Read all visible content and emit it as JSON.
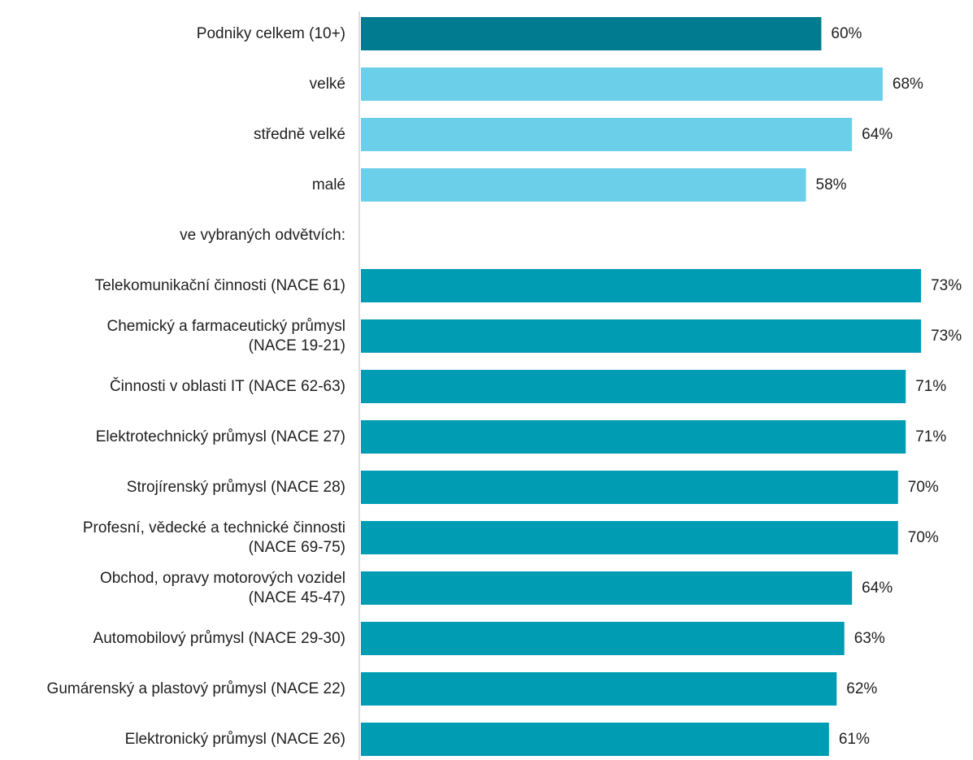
{
  "chart_data": {
    "type": "bar",
    "orientation": "horizontal",
    "title": "",
    "xlabel": "",
    "ylabel": "",
    "xlim": [
      0,
      75
    ],
    "grid": false,
    "legend": "none",
    "value_suffix": "%",
    "colors": {
      "total": "#007b8f",
      "size": "#6ccfe9",
      "sector": "#009cb4",
      "axis": "#bfbfbf"
    },
    "bars": [
      {
        "label": [
          "Podniky celkem (10+)"
        ],
        "value": 60,
        "group": "total"
      },
      {
        "label": [
          "velké"
        ],
        "value": 68,
        "group": "size"
      },
      {
        "label": [
          "středně velké"
        ],
        "value": 64,
        "group": "size"
      },
      {
        "label": [
          "malé"
        ],
        "value": 58,
        "group": "size"
      },
      {
        "label": [
          "ve vybraných odvětvích:"
        ],
        "value": null,
        "group": "header"
      },
      {
        "label": [
          "Telekomunikační činnosti (NACE 61)"
        ],
        "value": 73,
        "group": "sector"
      },
      {
        "label": [
          "Chemický a farmaceutický průmysl",
          "(NACE 19-21)"
        ],
        "value": 73,
        "group": "sector"
      },
      {
        "label": [
          "Činnosti v oblasti IT (NACE 62-63)"
        ],
        "value": 71,
        "group": "sector"
      },
      {
        "label": [
          "Elektrotechnický průmysl (NACE 27)"
        ],
        "value": 71,
        "group": "sector"
      },
      {
        "label": [
          "Strojírenský průmysl (NACE 28)"
        ],
        "value": 70,
        "group": "sector"
      },
      {
        "label": [
          "Profesní, vědecké a technické činnosti",
          "(NACE 69-75)"
        ],
        "value": 70,
        "group": "sector"
      },
      {
        "label": [
          "Obchod, opravy motorových vozidel",
          "(NACE 45-47)"
        ],
        "value": 64,
        "group": "sector"
      },
      {
        "label": [
          "Automobilový průmysl (NACE 29-30)"
        ],
        "value": 63,
        "group": "sector"
      },
      {
        "label": [
          "Gumárenský a plastový průmysl (NACE 22)"
        ],
        "value": 62,
        "group": "sector"
      },
      {
        "label": [
          "Elektronický průmysl (NACE 26)"
        ],
        "value": 61,
        "group": "sector"
      }
    ]
  }
}
